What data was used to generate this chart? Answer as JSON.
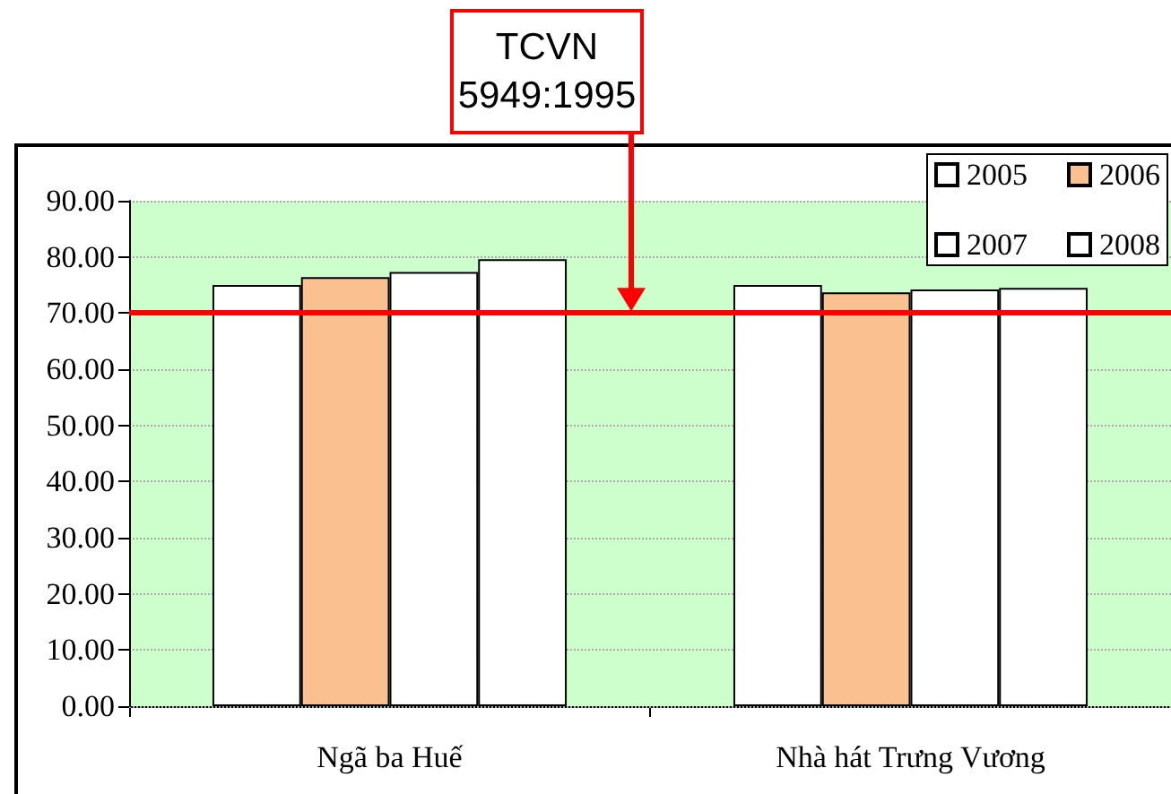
{
  "chart_data": {
    "type": "bar",
    "categories": [
      "Ngã ba Huế",
      "Nhà hát Trưng Vương"
    ],
    "series": [
      {
        "name": "2005",
        "color": "#ffffff",
        "values": [
          75.0,
          75.0
        ]
      },
      {
        "name": "2006",
        "color": "#fac090",
        "values": [
          76.4,
          73.7
        ]
      },
      {
        "name": "2007",
        "color": "#ffffff",
        "values": [
          77.3,
          74.2
        ]
      },
      {
        "name": "2008",
        "color": "#ffffff",
        "values": [
          79.6,
          74.5
        ]
      }
    ],
    "ylim": [
      0,
      90
    ],
    "yticks": [
      {
        "value": 0,
        "label": "0.00"
      },
      {
        "value": 10,
        "label": "10.00"
      },
      {
        "value": 20,
        "label": "20.00"
      },
      {
        "value": 30,
        "label": "30.00"
      },
      {
        "value": 40,
        "label": "40.00"
      },
      {
        "value": 50,
        "label": "50.00"
      },
      {
        "value": 60,
        "label": "60.00"
      },
      {
        "value": 70,
        "label": "70.00"
      },
      {
        "value": 80,
        "label": "80.00"
      },
      {
        "value": 90,
        "label": "90.00"
      }
    ],
    "ref_lines": [
      {
        "axis": "y",
        "value": 70,
        "color": "#ff0000"
      }
    ],
    "bands": [
      {
        "axis": "y",
        "from": 0,
        "to": 90,
        "color": "#ccffcc"
      }
    ],
    "annotations": [
      "TCVN\n5949:1995"
    ],
    "grid": "y",
    "legend": "top right"
  }
}
